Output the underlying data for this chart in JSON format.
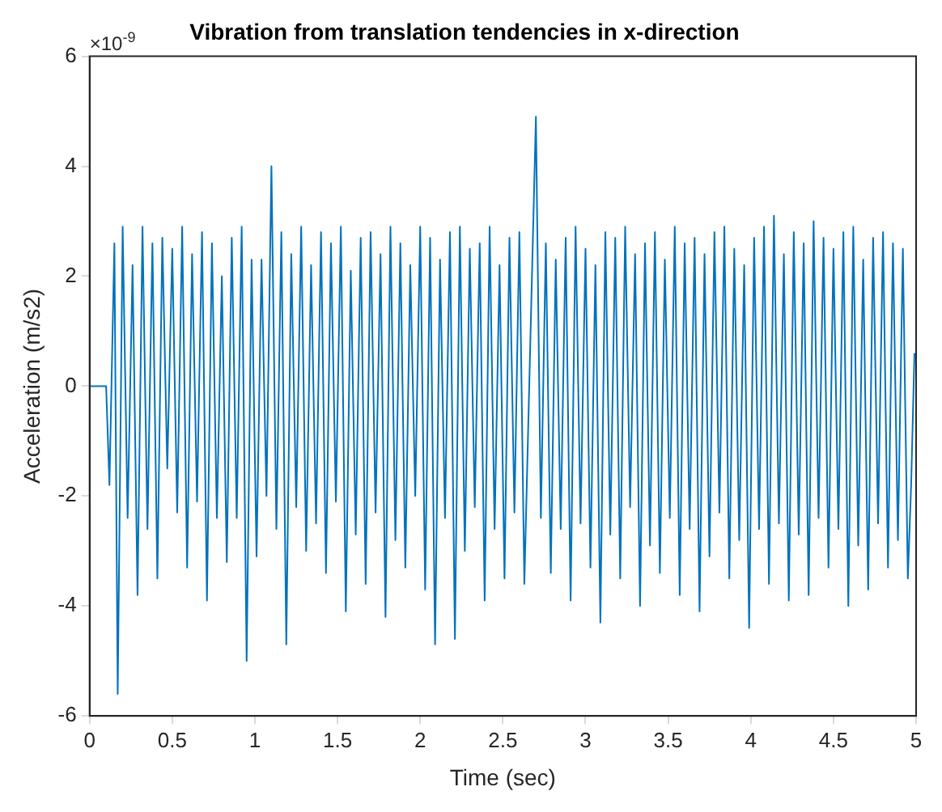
{
  "chart_data": {
    "type": "line",
    "title": "Vibration from translation tendencies in x-direction",
    "xlabel": "Time (sec)",
    "ylabel": "Acceleration (m/s2)",
    "annotations": [
      "×10$^{-9}$"
    ],
    "xlim": [
      0,
      5
    ],
    "xticks": [
      0,
      0.5,
      1,
      1.5,
      2,
      2.5,
      3,
      3.5,
      4,
      4.5,
      5
    ],
    "ylim": [
      -6,
      6
    ],
    "yticks": [
      -6,
      -4,
      -2,
      0,
      2,
      4,
      6
    ],
    "grid": false,
    "legend": false,
    "marker": "none",
    "line_style": "solid",
    "x": [
      0,
      0.1,
      0.12,
      0.15,
      0.17,
      0.2,
      0.23,
      0.26,
      0.29,
      0.32,
      0.35,
      0.38,
      0.41,
      0.44,
      0.47,
      0.5,
      0.53,
      0.56,
      0.59,
      0.62,
      0.65,
      0.68,
      0.71,
      0.74,
      0.77,
      0.8,
      0.83,
      0.86,
      0.89,
      0.92,
      0.95,
      0.98,
      1.01,
      1.04,
      1.07,
      1.1,
      1.13,
      1.16,
      1.19,
      1.22,
      1.25,
      1.28,
      1.31,
      1.34,
      1.37,
      1.4,
      1.43,
      1.46,
      1.49,
      1.52,
      1.55,
      1.58,
      1.61,
      1.64,
      1.67,
      1.7,
      1.73,
      1.76,
      1.79,
      1.82,
      1.85,
      1.88,
      1.91,
      1.94,
      1.97,
      2.0,
      2.03,
      2.06,
      2.09,
      2.12,
      2.15,
      2.18,
      2.21,
      2.24,
      2.27,
      2.3,
      2.33,
      2.36,
      2.39,
      2.42,
      2.45,
      2.48,
      2.51,
      2.54,
      2.57,
      2.6,
      2.63,
      2.7,
      2.73,
      2.76,
      2.79,
      2.82,
      2.85,
      2.88,
      2.91,
      2.94,
      2.97,
      3.0,
      3.03,
      3.06,
      3.09,
      3.12,
      3.15,
      3.18,
      3.21,
      3.24,
      3.27,
      3.3,
      3.33,
      3.36,
      3.39,
      3.42,
      3.45,
      3.48,
      3.51,
      3.54,
      3.57,
      3.6,
      3.63,
      3.66,
      3.69,
      3.72,
      3.75,
      3.78,
      3.81,
      3.84,
      3.87,
      3.9,
      3.93,
      3.96,
      3.99,
      4.02,
      4.05,
      4.08,
      4.11,
      4.14,
      4.17,
      4.2,
      4.23,
      4.26,
      4.29,
      4.32,
      4.35,
      4.38,
      4.41,
      4.44,
      4.47,
      4.5,
      4.53,
      4.56,
      4.59,
      4.62,
      4.65,
      4.68,
      4.71,
      4.74,
      4.77,
      4.8,
      4.83,
      4.86,
      4.89,
      4.92,
      4.95,
      4.97,
      4.99
    ],
    "series": [
      {
        "color": "#0072bd",
        "values": [
          0,
          0,
          -1.8,
          2.6,
          -5.6,
          2.9,
          -2.4,
          2.2,
          -3.8,
          2.9,
          -2.6,
          2.6,
          -3.5,
          2.7,
          -1.5,
          2.5,
          -2.3,
          2.9,
          -3.3,
          2.4,
          -2.1,
          2.8,
          -3.9,
          2.6,
          -2.4,
          2.0,
          -3.2,
          2.7,
          -2.4,
          2.9,
          -5.0,
          2.3,
          -3.1,
          2.3,
          -2.0,
          4.0,
          -2.6,
          2.8,
          -4.7,
          2.4,
          -2.2,
          2.9,
          -3.0,
          2.2,
          -2.5,
          2.8,
          -3.4,
          2.6,
          -2.1,
          2.9,
          -4.1,
          2.1,
          -2.7,
          2.7,
          -3.6,
          2.8,
          -2.3,
          2.4,
          -4.2,
          2.9,
          -2.8,
          2.6,
          -3.3,
          2.2,
          -2.0,
          2.9,
          -3.7,
          2.7,
          -4.7,
          2.3,
          -2.4,
          2.8,
          -4.6,
          2.9,
          -3.0,
          2.5,
          -2.2,
          2.6,
          -3.9,
          2.9,
          -2.6,
          2.2,
          -3.5,
          2.7,
          -2.3,
          2.8,
          -3.6,
          4.9,
          -2.4,
          2.6,
          -3.4,
          2.3,
          -2.6,
          2.7,
          -3.9,
          2.9,
          -2.5,
          2.5,
          -3.3,
          2.2,
          -4.3,
          2.8,
          -2.7,
          2.7,
          -3.5,
          2.9,
          -2.2,
          2.4,
          -4.0,
          2.6,
          -2.9,
          2.8,
          -3.4,
          2.3,
          -2.4,
          2.9,
          -3.8,
          2.6,
          -2.6,
          2.7,
          -4.1,
          2.4,
          -3.1,
          2.8,
          -2.3,
          2.9,
          -3.5,
          2.5,
          -2.8,
          2.2,
          -4.4,
          2.7,
          -2.6,
          2.9,
          -3.6,
          3.1,
          -2.5,
          2.4,
          -3.9,
          2.8,
          -2.7,
          2.6,
          -3.8,
          3.0,
          -2.4,
          2.7,
          -3.3,
          2.5,
          -2.6,
          2.8,
          -4.0,
          2.9,
          -2.9,
          2.3,
          -3.7,
          2.7,
          -2.5,
          2.8,
          -3.3,
          2.6,
          -2.8,
          2.5,
          -3.5,
          -1.8,
          0.6
        ]
      }
    ]
  }
}
